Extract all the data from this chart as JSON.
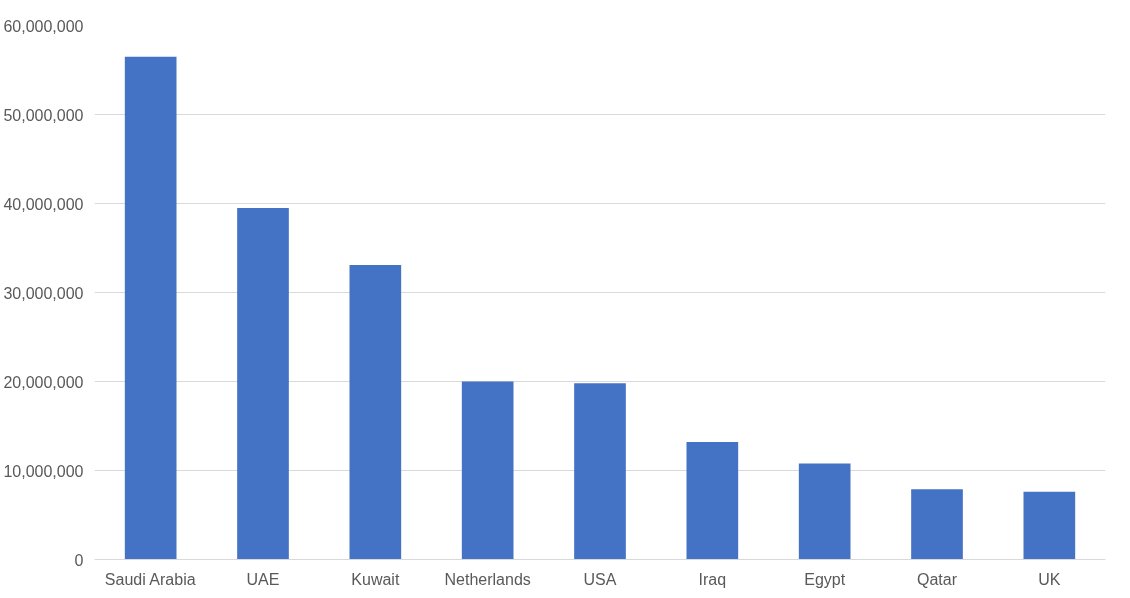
{
  "chart_data": {
    "type": "bar",
    "categories": [
      "Saudi Arabia",
      "UAE",
      "Kuwait",
      "Netherlands",
      "USA",
      "Iraq",
      "Egypt",
      "Qatar",
      "UK"
    ],
    "values": [
      56500000,
      39500000,
      33100000,
      20000000,
      19800000,
      13200000,
      10800000,
      7900000,
      7600000
    ],
    "color": "#4472c4",
    "ylim": [
      0,
      60000000
    ],
    "yticks": [
      {
        "value": 0,
        "label": "0"
      },
      {
        "value": 10000000,
        "label": "10,000,000"
      },
      {
        "value": 20000000,
        "label": "20,000,000"
      },
      {
        "value": 30000000,
        "label": "30,000,000"
      },
      {
        "value": 40000000,
        "label": "40,000,000"
      },
      {
        "value": 50000000,
        "label": "50,000,000"
      },
      {
        "value": 60000000,
        "label": "60,000,000"
      }
    ],
    "grid": "y"
  }
}
